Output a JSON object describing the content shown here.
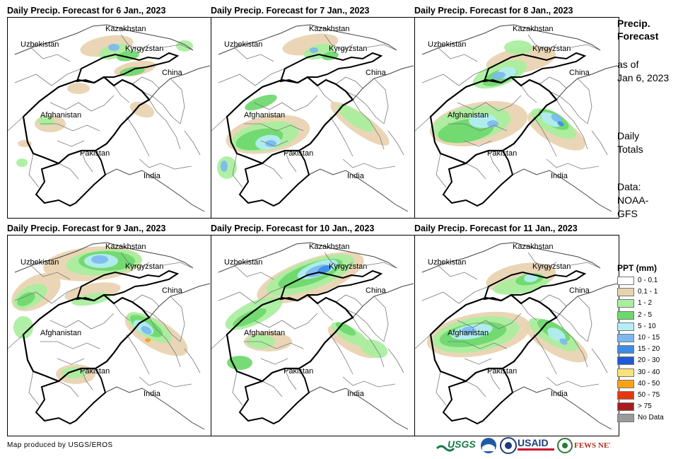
{
  "panels": [
    {
      "title": "Daily Precip. Forecast for 6 Jan., 2023"
    },
    {
      "title": "Daily Precip. Forecast for 7 Jan., 2023"
    },
    {
      "title": "Daily Precip. Forecast for 8 Jan., 2023"
    },
    {
      "title": "Daily Precip. Forecast for 9 Jan., 2023"
    },
    {
      "title": "Daily Precip. Forecast for 10 Jan., 2023"
    },
    {
      "title": "Daily Precip. Forecast for 11 Jan., 2023"
    }
  ],
  "country_labels": {
    "kazakhstan": "Kazakhstan",
    "uzbekistan": "Uzbekistan",
    "kyrgyzstan": "Kyrgyzstan",
    "china": "China",
    "afghanistan": "Afghanistan",
    "pakistan": "Pakistan",
    "india": "India"
  },
  "sidebar": {
    "title_line1": "Precip.",
    "title_line2": "Forecast",
    "asof_line1": "as of",
    "asof_line2": "Jan 6, 2023",
    "totals_line1": "Daily",
    "totals_line2": "Totals",
    "data_line1": "Data:",
    "data_line2": "NOAA-",
    "data_line3": "GFS"
  },
  "legend": {
    "title": "PPT (mm)",
    "items": [
      {
        "label": "0 - 0.1",
        "color": "#ffffff"
      },
      {
        "label": "0.1 - 1",
        "color": "#e8d3b0"
      },
      {
        "label": "1 - 2",
        "color": "#a8ef9e"
      },
      {
        "label": "2 - 5",
        "color": "#6cd86c"
      },
      {
        "label": "5 - 10",
        "color": "#b4eef5"
      },
      {
        "label": "10 - 15",
        "color": "#7cb8f0"
      },
      {
        "label": "15 - 20",
        "color": "#3e8ce4"
      },
      {
        "label": "20 - 30",
        "color": "#1e5ad2"
      },
      {
        "label": "30 - 40",
        "color": "#f8e27a"
      },
      {
        "label": "40 - 50",
        "color": "#f8a21a"
      },
      {
        "label": "50 - 75",
        "color": "#e4380e"
      },
      {
        "label": "> 75",
        "color": "#a61c1c"
      },
      {
        "label": "No Data",
        "color": "#9a9a9a"
      }
    ]
  },
  "footer": {
    "credit": "Map produced by USGS/EROS"
  },
  "logos": {
    "usgs": "USGS",
    "usaid": "USAID",
    "fewsnet": "FEWS NET"
  }
}
